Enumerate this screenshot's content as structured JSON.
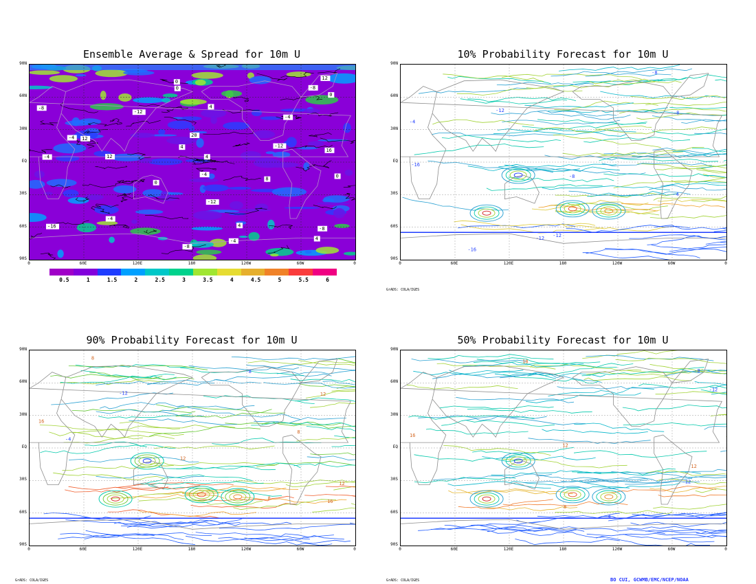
{
  "panels": [
    {
      "id": "p1",
      "title": "Ensemble Average & Spread for 10m U",
      "kind": "filled",
      "labels": [
        "-8",
        "-4",
        "0",
        "4",
        "-4",
        "0",
        "4",
        "-4",
        "-8",
        "4",
        "0",
        "-4",
        "4",
        "0",
        "-4",
        "-12",
        "-8",
        "12",
        "-12",
        "-16",
        "16",
        "20",
        "12",
        "-12",
        "-8",
        "4",
        "8",
        "12",
        "-4",
        "0"
      ]
    },
    {
      "id": "p2",
      "title": "10% Probability Forecast for 10m U",
      "kind": "contour",
      "labels": [
        "-4",
        "-8",
        "-12",
        "-16",
        "-8",
        "-4",
        "-12",
        "-16",
        "-12",
        "-8"
      ]
    },
    {
      "id": "p3",
      "title": "90% Probability Forecast for 10m U",
      "kind": "contour",
      "labels": [
        "16",
        "16",
        "12",
        "12",
        "12",
        "8",
        "8",
        "8",
        "-4",
        "-8",
        "-12"
      ]
    },
    {
      "id": "p4",
      "title": "50% Probability Forecast for 10m U",
      "kind": "contour",
      "labels": [
        "16",
        "18",
        "12",
        "12",
        "-12",
        "-4",
        "-8",
        "8",
        "-12"
      ]
    }
  ],
  "lat_labels": [
    "90N",
    "60N",
    "30N",
    "EQ",
    "30S",
    "60S",
    "90S"
  ],
  "lon_labels": [
    "0",
    "60E",
    "120E",
    "180",
    "120W",
    "60W",
    "0"
  ],
  "colorbar": {
    "labels": [
      "0.5",
      "1",
      "1.5",
      "2",
      "2.5",
      "3",
      "3.5",
      "4",
      "4.5",
      "5",
      "5.5",
      "6"
    ],
    "colors": [
      "#a000c8",
      "#8200dc",
      "#1e3cff",
      "#00a0ff",
      "#00c8c8",
      "#00d28c",
      "#a0e632",
      "#e6dc32",
      "#e6af2d",
      "#f08228",
      "#fa3c3c",
      "#f00082"
    ]
  },
  "credits": {
    "grads": "GrADS: COLA/IGES",
    "author": "BO CUI, GCWMB/EMC/NCEP/NOAA"
  }
}
